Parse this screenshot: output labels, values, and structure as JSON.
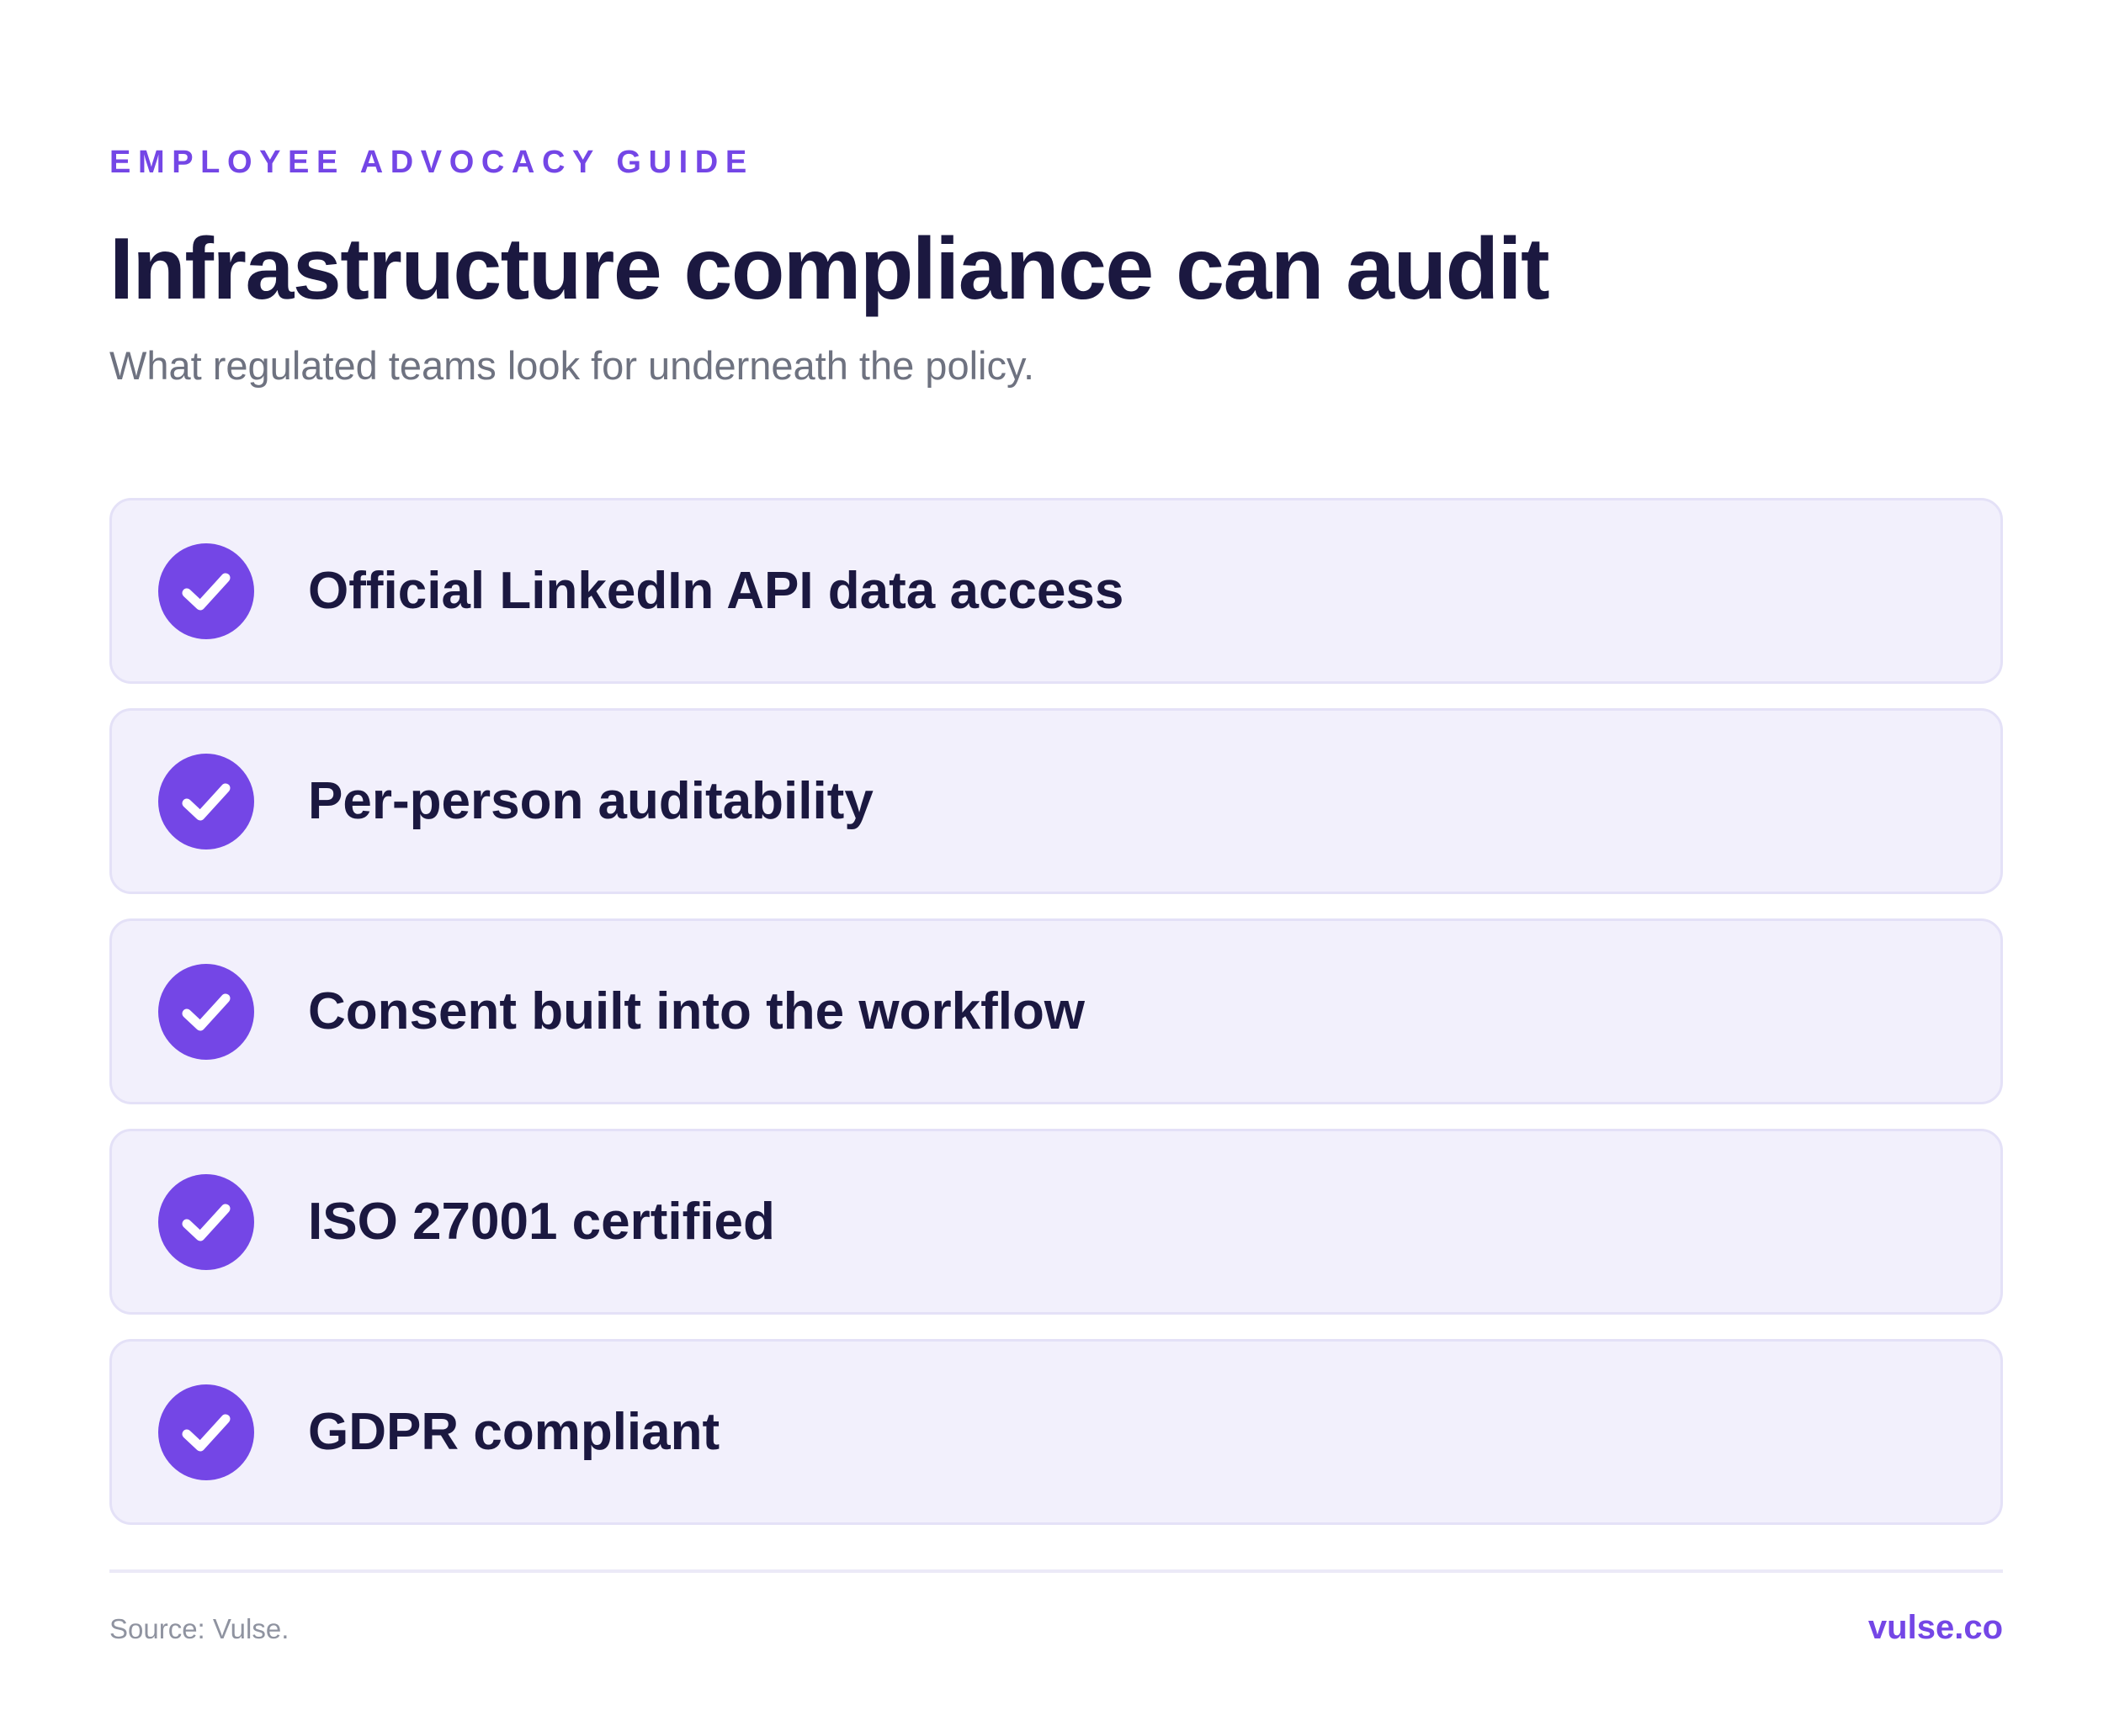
{
  "header": {
    "eyebrow": "EMPLOYEE ADVOCACY GUIDE",
    "title": "Infrastructure compliance can audit",
    "subtitle": "What regulated teams look for underneath the policy."
  },
  "checklist": {
    "icon": "check-circle-icon",
    "items": [
      {
        "label": "Official LinkedIn API data access"
      },
      {
        "label": "Per-person auditability"
      },
      {
        "label": "Consent built into the workflow"
      },
      {
        "label": "ISO 27001 certified"
      },
      {
        "label": "GDPR compliant"
      }
    ]
  },
  "footer": {
    "source": "Source: Vulse.",
    "brand": "vulse.co"
  },
  "colors": {
    "accent": "#7446e6",
    "heading": "#1b1840",
    "card_background": "#f2f0fc",
    "card_border": "#e4e1f7"
  }
}
